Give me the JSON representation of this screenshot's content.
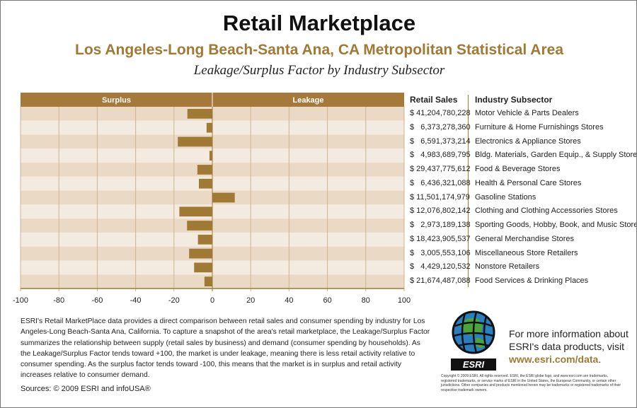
{
  "title": "Retail Marketplace",
  "subtitle": "Los Angeles-Long Beach-Santa Ana, CA Metropolitan Statistical Area",
  "chart_title": "Leakage/Surplus Factor by Industry Subsector",
  "chart_data": {
    "type": "bar",
    "orientation": "horizontal",
    "title": "Leakage/Surplus Factor by Industry Subsector",
    "left_label": "Surplus",
    "right_label": "Leakage",
    "xlim": [
      -100,
      100
    ],
    "xticks": [
      -100,
      -80,
      -60,
      -40,
      -20,
      0,
      20,
      40,
      60,
      80,
      100
    ],
    "categories": [
      "Motor Vehicle & Parts Dealers",
      "Furniture & Home Furnishings Stores",
      "Electronics & Appliance Stores",
      "Bldg. Materials, Garden Equip., & Supply Stores",
      "Food & Beverage Stores",
      "Health & Personal Care Stores",
      "Gasoline Stations",
      "Clothing and Clothing Accessories Stores",
      "Sporting Goods, Hobby, Book, and Music Stores",
      "General Merchandise Stores",
      "Miscellaneous Store Retailers",
      "Nonstore Retailers",
      "Food Services & Drinking Places"
    ],
    "values": [
      -13,
      -3,
      -18,
      -1.5,
      -7.8,
      -7,
      11.7,
      -17.2,
      -13.2,
      -7.5,
      -12.1,
      -9.5,
      -4.1
    ],
    "colors": {
      "bar": "#a07a35",
      "header": "#a6793a",
      "band_dark": "#ead9c4",
      "band_light": "#f3ebe0",
      "grid": "#cdb48f"
    }
  },
  "table": {
    "sales_header": "Retail Sales",
    "subsector_header": "Industry Subsector",
    "sales": [
      "$ 41,204,780,228",
      "$   6,373,278,360",
      "$   6,591,373,214",
      "$   4,983,689,795",
      "$ 29,437,775,612",
      "$   6,436,321,088",
      "$ 11,501,174,979",
      "$ 12,076,802,142",
      "$   2,973,189,138",
      "$ 18,423,905,537",
      "$   3,005,553,106",
      "$   4,429,120,532",
      "$ 21,674,487,088"
    ]
  },
  "description": "ESRI's Retail MarketPlace data provides a direct comparison between retail sales and consumer spending by industry for Los Angeles-Long Beach-Santa Ana, California. To capture a snapshot of the area's retail marketplace, the Leakage/Surplus Factor summarizes the relationship between supply (retail sales by business) and demand (consumer spending by households). As the Leakage/Surplus Factor tends toward +100, the market is under leakage, meaning there is less retail activity relative to consumer spending. As the surplus factor tends toward -100, this means that the market is in surplus and retail activity increases relative to consumer demand.",
  "sources": "Sources: © 2009 ESRI and infoUSA®",
  "logo_text": "ESRI",
  "info_line1": "For more information about",
  "info_line2": "ESRI's data products, visit",
  "info_url": "www.esri.com/data",
  "info_period": ".",
  "copyright": "Copyright © 2009 ESRI. All rights reserved. ESRI, the ESRI globe logo, and www.esri.com are trademarks, registered trademarks, or service marks of ESRI in the United States, the European Community, or certain other jurisdictions. Other companies and products mentioned herein may be trademarks or registered trademarks of their respective trademark owners."
}
